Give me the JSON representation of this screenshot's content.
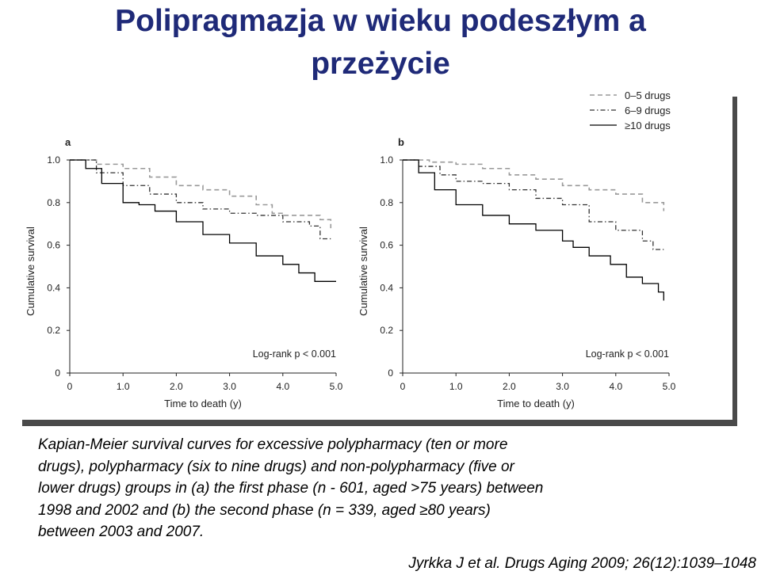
{
  "slide": {
    "title_line1": "Polipragmazja w wieku podeszłym a",
    "title_line2": "przeżycie",
    "caption_lines": [
      "Kapian-Meier survival curves for excessive polypharmacy (ten or more",
      "drugs), polypharmacy (six to nine drugs) and non-polypharmacy (five or",
      "lower drugs) groups in (a) the first phase (n - 601, aged >75 years) between",
      "1998 and 2002 and (b) the second phase (n = 339, aged ≥80 years)",
      "between 2003 and 2007."
    ],
    "citation": "Jyrkka J et al. Drugs Aging  2009; 26(12):1039–1048"
  },
  "legend": [
    {
      "label": "0–5 drugs",
      "style": "dashed"
    },
    {
      "label": "6–9 drugs",
      "style": "dashdot"
    },
    {
      "label": "≥10 drugs",
      "style": "solid"
    }
  ],
  "colors": {
    "title": "#1f2a78",
    "curve_light": "#999999",
    "curve_dark": "#333333",
    "curve_black": "#000000",
    "shadow": "#4a4a4a"
  },
  "chart_data": [
    {
      "type": "line",
      "panel_label": "a",
      "xlabel": "Time to death (y)",
      "ylabel": "Cumulative survival",
      "xlim": [
        0,
        5.0
      ],
      "ylim": [
        0,
        1.0
      ],
      "x_ticks": [
        "0",
        "1.0",
        "2.0",
        "3.0",
        "4.0",
        "5.0"
      ],
      "y_ticks": [
        "0",
        "0.2",
        "0.4",
        "0.6",
        "0.8",
        "1.0"
      ],
      "annotation": "Log-rank p < 0.001",
      "grid": false,
      "series": [
        {
          "name": "0–5 drugs",
          "x": [
            0,
            0.5,
            1.0,
            1.5,
            2.0,
            2.5,
            3.0,
            3.5,
            3.8,
            4.0,
            4.3,
            4.7,
            4.9
          ],
          "y": [
            1.0,
            0.98,
            0.96,
            0.92,
            0.88,
            0.86,
            0.83,
            0.79,
            0.75,
            0.74,
            0.74,
            0.72,
            0.68
          ]
        },
        {
          "name": "6–9 drugs",
          "x": [
            0,
            0.5,
            1.0,
            1.5,
            2.0,
            2.5,
            3.0,
            3.5,
            4.0,
            4.5,
            4.7,
            4.9
          ],
          "y": [
            1.0,
            0.94,
            0.88,
            0.84,
            0.8,
            0.77,
            0.75,
            0.74,
            0.71,
            0.69,
            0.63,
            0.63
          ]
        },
        {
          "name": "≥10 drugs",
          "x": [
            0,
            0.3,
            0.6,
            1.0,
            1.3,
            1.6,
            2.0,
            2.5,
            3.0,
            3.5,
            4.0,
            4.3,
            4.6,
            5.0
          ],
          "y": [
            1.0,
            0.96,
            0.89,
            0.8,
            0.79,
            0.76,
            0.71,
            0.65,
            0.61,
            0.55,
            0.51,
            0.47,
            0.43,
            0.43
          ]
        }
      ]
    },
    {
      "type": "line",
      "panel_label": "b",
      "xlabel": "Time to death (y)",
      "ylabel": "Cumulative survival",
      "xlim": [
        0,
        5.0
      ],
      "ylim": [
        0,
        1.0
      ],
      "x_ticks": [
        "0",
        "1.0",
        "2.0",
        "3.0",
        "4.0",
        "5.0"
      ],
      "y_ticks": [
        "0",
        "0.2",
        "0.4",
        "0.6",
        "0.8",
        "1.0"
      ],
      "annotation": "Log-rank p < 0.001",
      "grid": false,
      "series": [
        {
          "name": "0–5 drugs",
          "x": [
            0,
            0.5,
            1.0,
            1.5,
            2.0,
            2.5,
            3.0,
            3.5,
            4.0,
            4.5,
            4.9
          ],
          "y": [
            1.0,
            0.99,
            0.98,
            0.96,
            0.93,
            0.91,
            0.88,
            0.86,
            0.84,
            0.8,
            0.76
          ]
        },
        {
          "name": "6–9 drugs",
          "x": [
            0,
            0.3,
            0.7,
            1.0,
            1.5,
            2.0,
            2.5,
            3.0,
            3.5,
            4.0,
            4.5,
            4.7,
            4.9
          ],
          "y": [
            1.0,
            0.97,
            0.93,
            0.9,
            0.89,
            0.86,
            0.82,
            0.79,
            0.71,
            0.67,
            0.62,
            0.58,
            0.58
          ]
        },
        {
          "name": "≥10 drugs",
          "x": [
            0,
            0.3,
            0.6,
            1.0,
            1.5,
            2.0,
            2.5,
            3.0,
            3.2,
            3.5,
            3.9,
            4.2,
            4.5,
            4.8,
            4.9
          ],
          "y": [
            1.0,
            0.94,
            0.86,
            0.79,
            0.74,
            0.7,
            0.67,
            0.62,
            0.59,
            0.55,
            0.51,
            0.45,
            0.42,
            0.38,
            0.34
          ]
        }
      ]
    }
  ]
}
